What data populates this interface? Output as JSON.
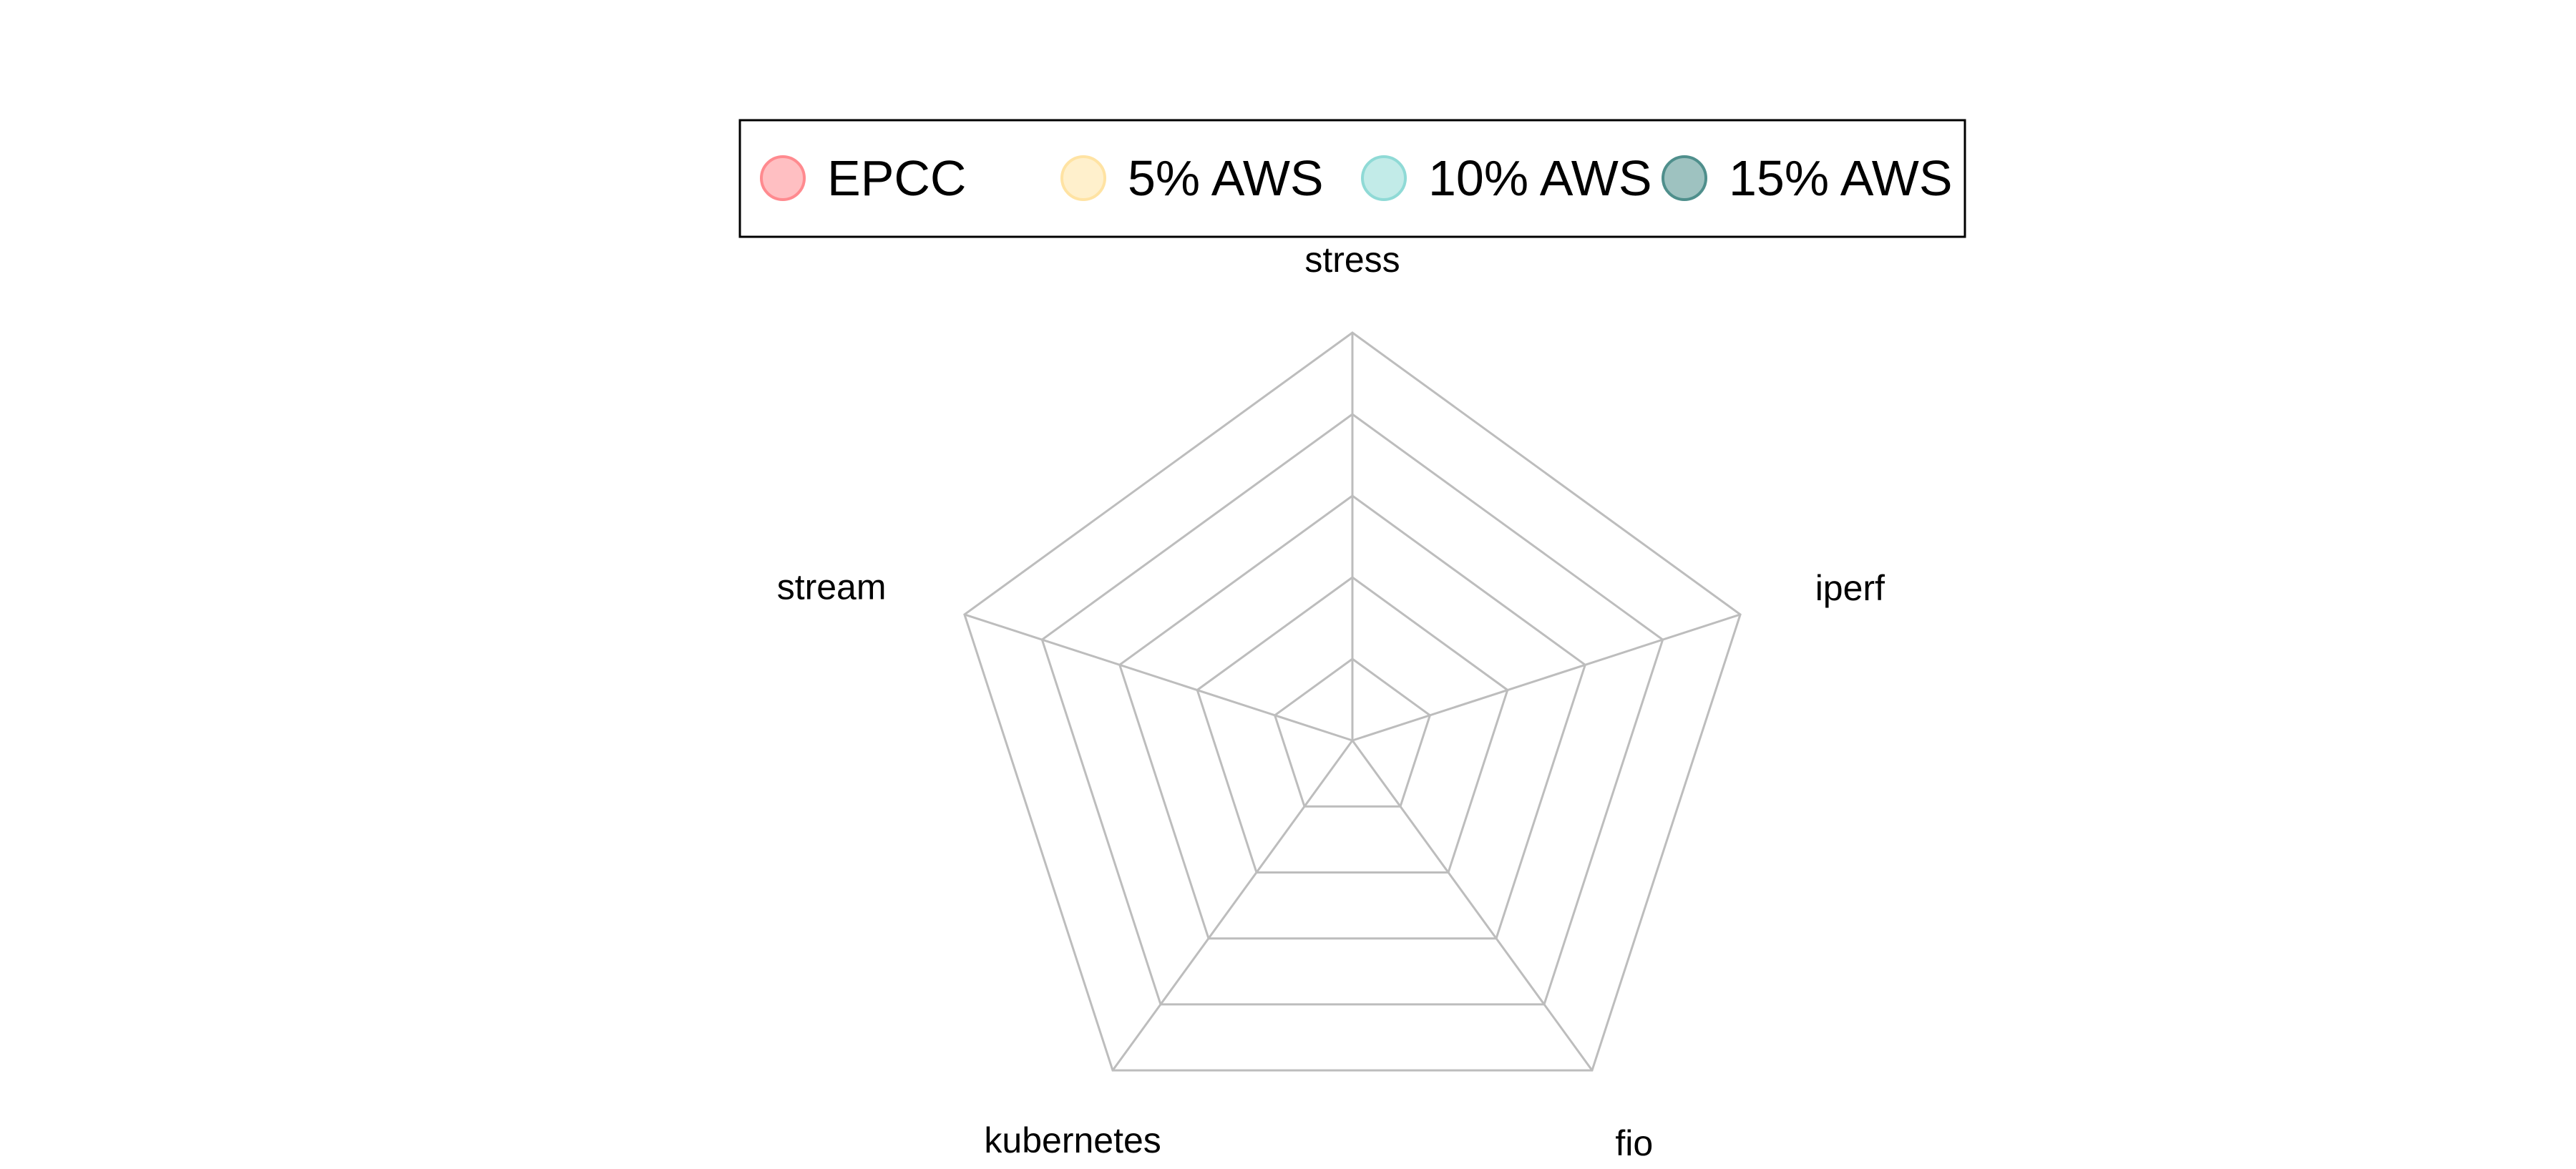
{
  "chart_data": {
    "type": "radar",
    "axes": [
      "stress",
      "iperf",
      "fio",
      "kubernetes",
      "stream"
    ],
    "rings": 5,
    "grid_color": "#bdbdbd",
    "legend_position": "top",
    "series": [
      {
        "name": "EPCC",
        "color": "#ff8a8f",
        "values": []
      },
      {
        "name": "5% AWS",
        "color": "#ffe3a3",
        "values": []
      },
      {
        "name": "10% AWS",
        "color": "#8fdad6",
        "values": []
      },
      {
        "name": "15% AWS",
        "color": "#4f8f8c",
        "values": []
      }
    ]
  }
}
